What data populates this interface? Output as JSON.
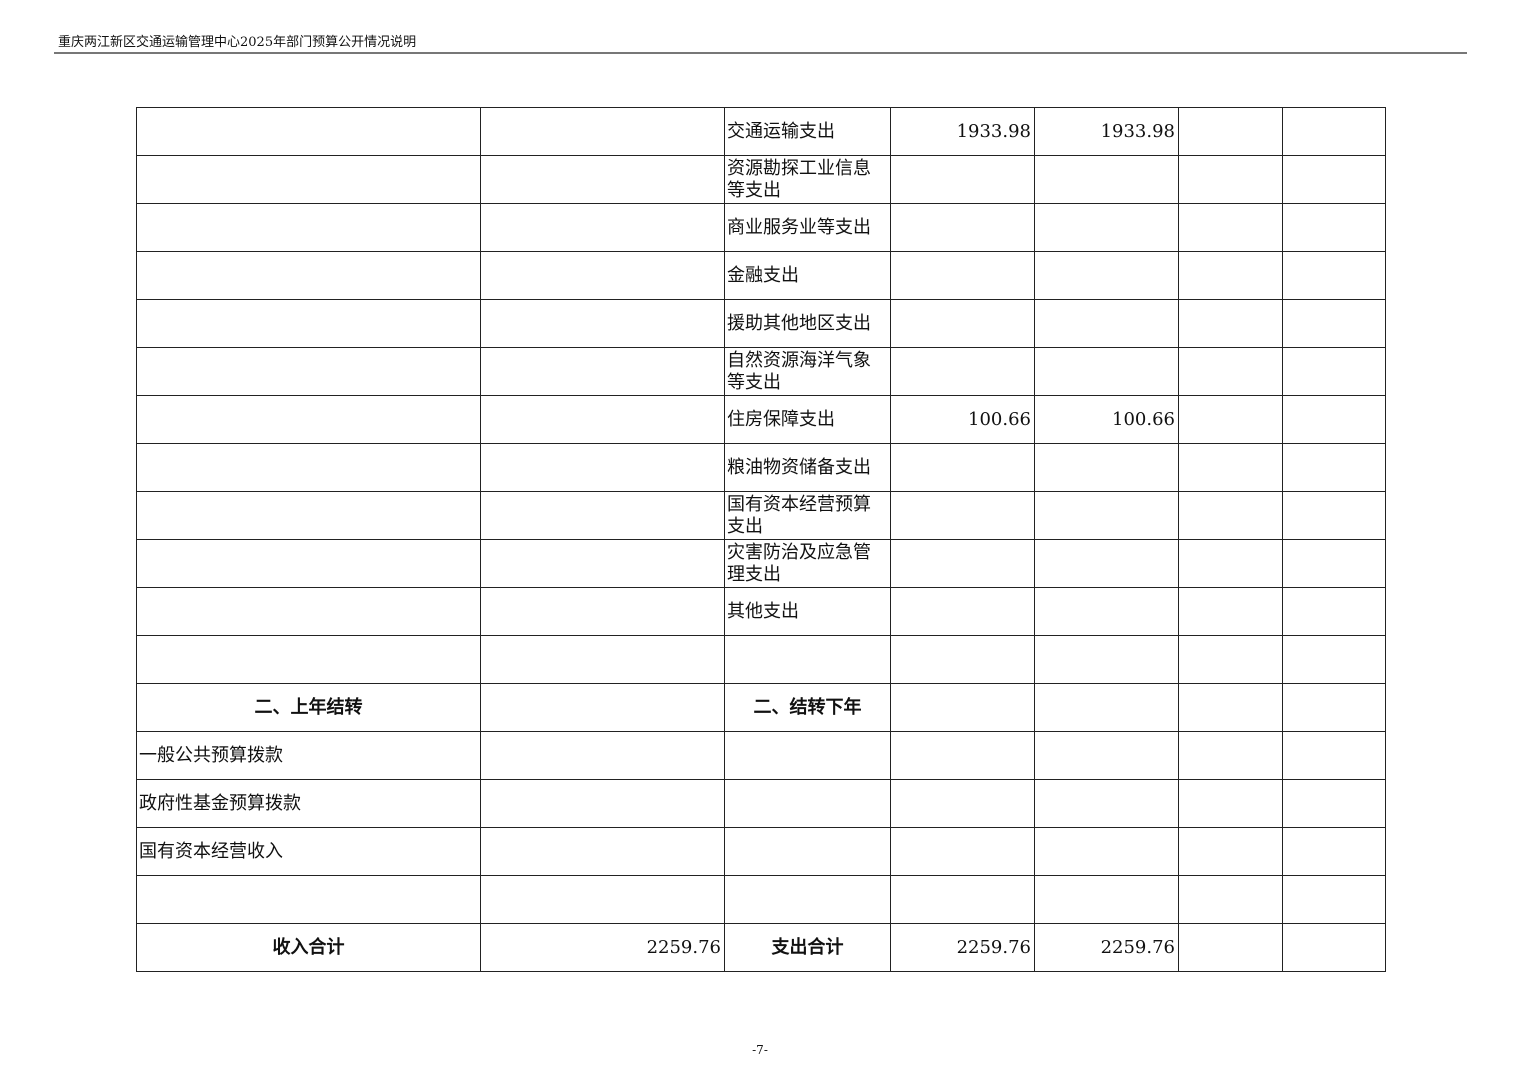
{
  "header": {
    "title": "重庆两江新区交通运输管理中心2025年部门预算公开情况说明"
  },
  "table": {
    "rows": [
      [
        "",
        "",
        "交通运输支出",
        "1933.98",
        "1933.98",
        "",
        ""
      ],
      [
        "",
        "",
        "资源勘探工业信息等支出",
        "",
        "",
        "",
        ""
      ],
      [
        "",
        "",
        "商业服务业等支出",
        "",
        "",
        "",
        ""
      ],
      [
        "",
        "",
        "金融支出",
        "",
        "",
        "",
        ""
      ],
      [
        "",
        "",
        "援助其他地区支出",
        "",
        "",
        "",
        ""
      ],
      [
        "",
        "",
        "自然资源海洋气象等支出",
        "",
        "",
        "",
        ""
      ],
      [
        "",
        "",
        "住房保障支出",
        "100.66",
        "100.66",
        "",
        ""
      ],
      [
        "",
        "",
        "粮油物资储备支出",
        "",
        "",
        "",
        ""
      ],
      [
        "",
        "",
        "国有资本经营预算支出",
        "",
        "",
        "",
        ""
      ],
      [
        "",
        "",
        "灾害防治及应急管理支出",
        "",
        "",
        "",
        ""
      ],
      [
        "",
        "",
        "其他支出",
        "",
        "",
        "",
        ""
      ],
      [
        "",
        "",
        "",
        "",
        "",
        "",
        ""
      ],
      [
        "二、上年结转",
        "",
        "二、结转下年",
        "",
        "",
        "",
        ""
      ],
      [
        "一般公共预算拨款",
        "",
        "",
        "",
        "",
        "",
        ""
      ],
      [
        "政府性基金预算拨款",
        "",
        "",
        "",
        "",
        "",
        ""
      ],
      [
        "国有资本经营收入",
        "",
        "",
        "",
        "",
        "",
        ""
      ],
      [
        "",
        "",
        "",
        "",
        "",
        "",
        ""
      ],
      [
        "收入合计",
        "2259.76",
        "支出合计",
        "2259.76",
        "2259.76",
        "",
        ""
      ]
    ]
  },
  "footer": {
    "page_number": "-7-"
  }
}
